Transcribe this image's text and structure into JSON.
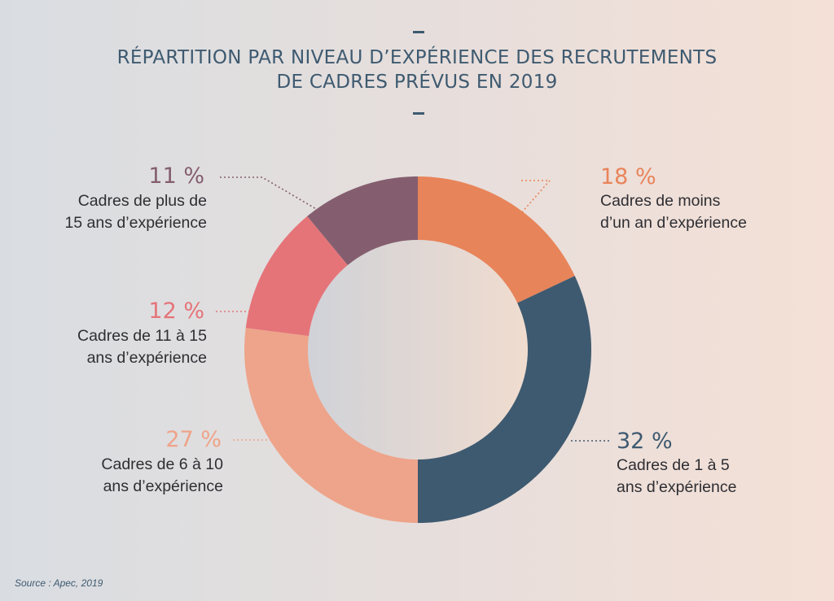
{
  "chart_data": {
    "type": "pie",
    "variant": "donut",
    "title_lines": [
      "RÉPARTITION PAR NIVEAU D’EXPÉRIENCE DES RECRUTEMENTS",
      "DE CADRES PRÉVUS EN 2019"
    ],
    "slices": [
      {
        "value": 18,
        "pct_label": "18 %",
        "label_lines": [
          "Cadres de moins",
          "d’un an d’expérience"
        ],
        "color": "#e8845a"
      },
      {
        "value": 32,
        "pct_label": "32 %",
        "label_lines": [
          "Cadres de 1 à 5",
          "ans d’expérience"
        ],
        "color": "#3e5a70"
      },
      {
        "value": 27,
        "pct_label": "27 %",
        "label_lines": [
          "Cadres de 6 à 10",
          "ans d’expérience"
        ],
        "color": "#eea48a"
      },
      {
        "value": 12,
        "pct_label": "12 %",
        "label_lines": [
          "Cadres de 11 à 15",
          "ans d’expérience"
        ],
        "color": "#e57479"
      },
      {
        "value": 11,
        "pct_label": "11 %",
        "label_lines": [
          "Cadres de plus de",
          "15 ans d’expérience"
        ],
        "color": "#845e6f"
      }
    ],
    "source": "Source : Apec, 2019"
  }
}
